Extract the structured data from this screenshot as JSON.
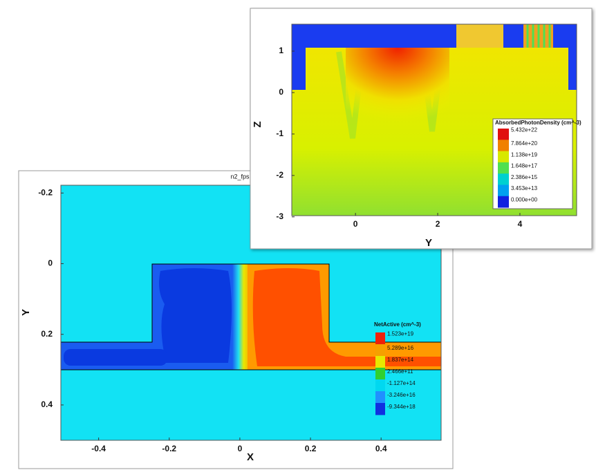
{
  "chart_data": [
    {
      "type": "contour",
      "title": "n2_fps",
      "x_label": "X",
      "y_label": "Y",
      "xlim": [
        -0.507,
        0.57
      ],
      "xticks": [
        -0.4,
        -0.2,
        0,
        0.2,
        0.4
      ],
      "ylim": [
        -0.222,
        0.5
      ],
      "yticks": [
        -0.2,
        0,
        0.2,
        0.4
      ],
      "y_inverted": true,
      "colorbar": {
        "title": "NetActive (cm^-3)",
        "labels": [
          "1.523e+19",
          "5.289e+16",
          "1.837e+14",
          "2.466e+11",
          "-1.127e+14",
          "-3.246e+16",
          "-9.344e+18"
        ],
        "colors": [
          "#f0200a",
          "#f5a000",
          "#e8e800",
          "#30d030",
          "#00d8f0",
          "#2090ff",
          "#1030e0"
        ]
      }
    },
    {
      "type": "contour",
      "x_label": "Y",
      "y_label": "Z",
      "xlim": [
        -1.55,
        5.38
      ],
      "xticks": [
        0,
        2,
        4
      ],
      "ylim": [
        -2.97,
        1.65
      ],
      "yticks": [
        -3,
        -2,
        -1,
        0,
        1
      ],
      "colorbar": {
        "title": "AbsorbedPhotonDensity (cm^-3)",
        "labels": [
          "5.432e+22",
          "7.864e+20",
          "1.138e+19",
          "1.648e+17",
          "2.386e+15",
          "3.453e+13",
          "0.000e+00"
        ],
        "colors": [
          "#e01010",
          "#f08000",
          "#d8e800",
          "#50e050",
          "#00d0d0",
          "#00a0f0",
          "#1020e0"
        ]
      }
    }
  ]
}
